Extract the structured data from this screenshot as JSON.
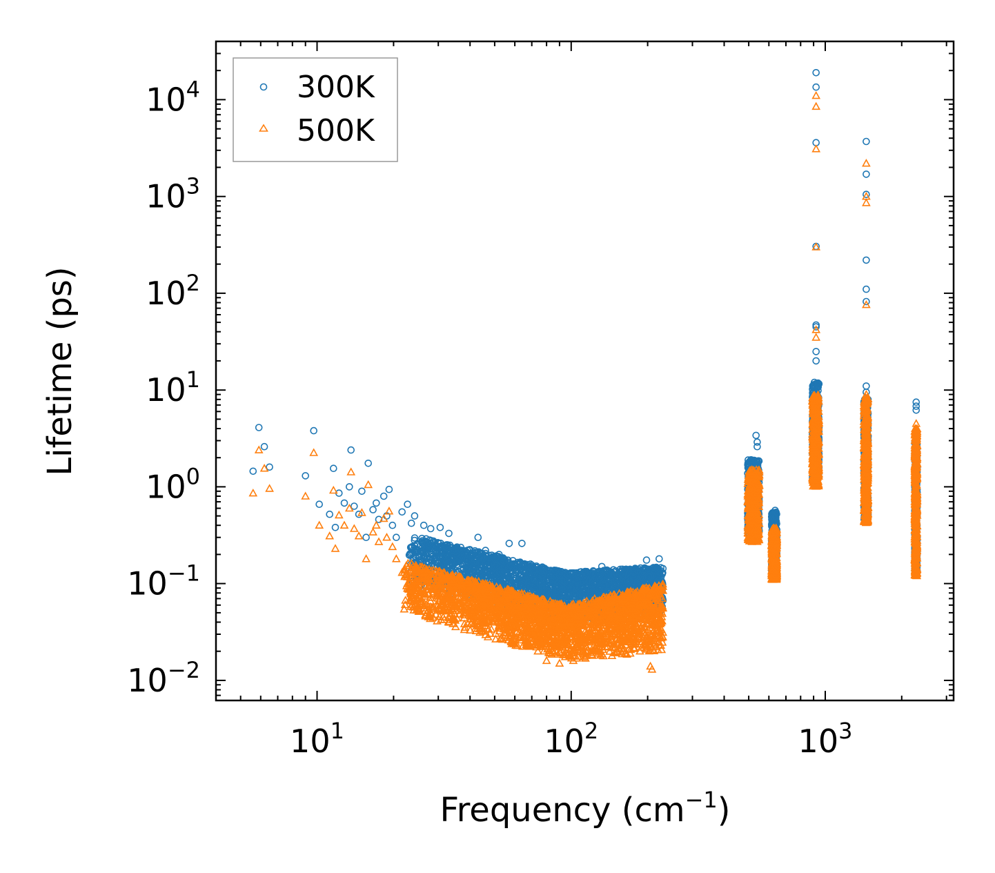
{
  "chart_data": {
    "type": "scatter",
    "title": "",
    "xlabel": "Frequency (cm",
    "xlabel_sup": "−1",
    "xlabel_end": ")",
    "ylabel": "Lifetime (ps)",
    "xscale": "log",
    "yscale": "log",
    "xlim": [
      4.0,
      3200
    ],
    "ylim": [
      0.0062,
      40000
    ],
    "x_ticks": [
      {
        "value": 10,
        "base": "10",
        "exp": "1"
      },
      {
        "value": 100,
        "base": "10",
        "exp": "2"
      },
      {
        "value": 1000,
        "base": "10",
        "exp": "3"
      }
    ],
    "y_ticks": [
      {
        "value": 0.01,
        "base": "10",
        "exp": "−2"
      },
      {
        "value": 0.1,
        "base": "10",
        "exp": "−1"
      },
      {
        "value": 1,
        "base": "10",
        "exp": "0"
      },
      {
        "value": 10,
        "base": "10",
        "exp": "1"
      },
      {
        "value": 100,
        "base": "10",
        "exp": "2"
      },
      {
        "value": 1000,
        "base": "10",
        "exp": "3"
      },
      {
        "value": 10000,
        "base": "10",
        "exp": "4"
      }
    ],
    "legend": {
      "position": "top-left"
    },
    "series": [
      {
        "name": "300K",
        "marker": "circle",
        "color": "#1f77b4",
        "points": [
          [
            5.6,
            1.45
          ],
          [
            5.9,
            4.1
          ],
          [
            6.2,
            2.6
          ],
          [
            6.5,
            1.6
          ],
          [
            9.0,
            1.3
          ],
          [
            9.7,
            3.8
          ],
          [
            10.2,
            0.66
          ],
          [
            11.2,
            0.52
          ],
          [
            11.6,
            1.55
          ],
          [
            11.8,
            0.38
          ],
          [
            12.2,
            0.86
          ],
          [
            12.8,
            0.68
          ],
          [
            13.4,
            1.0
          ],
          [
            13.6,
            2.4
          ],
          [
            14.0,
            0.63
          ],
          [
            14.6,
            0.52
          ],
          [
            15.0,
            0.9
          ],
          [
            15.6,
            0.3
          ],
          [
            15.9,
            1.75
          ],
          [
            16.6,
            0.58
          ],
          [
            17.1,
            0.68
          ],
          [
            17.5,
            0.46
          ],
          [
            18.3,
            0.8
          ],
          [
            18.8,
            0.5
          ],
          [
            19.2,
            0.94
          ],
          [
            19.8,
            0.4
          ],
          [
            20.5,
            0.3
          ],
          [
            21.6,
            0.55
          ],
          [
            22.7,
            0.66
          ],
          [
            23.5,
            0.42
          ],
          [
            24.2,
            0.5
          ],
          [
            26.3,
            0.4
          ],
          [
            28.0,
            0.37
          ],
          [
            30.5,
            0.38
          ],
          [
            33.0,
            0.33
          ],
          [
            37.0,
            0.22
          ],
          [
            43.0,
            0.3
          ],
          [
            46.0,
            0.22
          ],
          [
            52.0,
            0.2
          ],
          [
            57.0,
            0.26
          ],
          [
            64.0,
            0.26
          ],
          [
            72.0,
            0.14
          ],
          [
            83.0,
            0.12
          ],
          [
            97.0,
            0.11
          ],
          [
            132.0,
            0.15
          ],
          [
            157.0,
            0.13
          ],
          [
            198.0,
            0.175
          ],
          [
            222.0,
            0.18
          ],
          [
            510,
            1.9
          ],
          [
            534,
            3.4
          ],
          [
            540,
            2.9
          ],
          [
            540,
            2.6
          ],
          [
            635,
            0.57
          ],
          [
            920,
            47
          ],
          [
            920,
            45
          ],
          [
            920,
            305
          ],
          [
            920,
            3600
          ],
          [
            920,
            13500
          ],
          [
            920,
            19000
          ],
          [
            920,
            25
          ],
          [
            920,
            20
          ],
          [
            1450,
            3700
          ],
          [
            1450,
            1700
          ],
          [
            1450,
            1050
          ],
          [
            1450,
            220
          ],
          [
            1450,
            110
          ],
          [
            1450,
            82
          ],
          [
            1450,
            11
          ],
          [
            1450,
            9.5
          ],
          [
            2280,
            7.5
          ],
          [
            2280,
            6.8
          ],
          [
            2280,
            6.2
          ],
          [
            2280,
            3.2
          ],
          [
            2280,
            2.6
          ]
        ],
        "clusters": [
          {
            "x_range": [
              23,
              230
            ],
            "y_range_at_start": [
              0.1,
              0.32
            ],
            "y_range_at_min": [
              0.04,
              0.13
            ],
            "x_at_min": 95,
            "y_range_at_end": [
              0.05,
              0.15
            ]
          },
          {
            "x_range": [
              495,
              550
            ],
            "y_range": [
              0.33,
              1.9
            ]
          },
          {
            "x_range": [
              615,
              645
            ],
            "y_range": [
              0.12,
              0.55
            ]
          },
          {
            "x_range": [
              890,
              945
            ],
            "y_range": [
              1.2,
              12
            ]
          },
          {
            "x_range": [
              1420,
              1475
            ],
            "y_range": [
              0.45,
              8
            ]
          },
          {
            "x_range": [
              2250,
              2300
            ],
            "y_range": [
              0.13,
              3.0
            ]
          }
        ]
      },
      {
        "name": "500K",
        "marker": "triangle",
        "color": "#ff7f0e",
        "points": [
          [
            5.6,
            0.86
          ],
          [
            5.9,
            2.4
          ],
          [
            6.2,
            1.55
          ],
          [
            6.5,
            0.96
          ],
          [
            9.0,
            0.8
          ],
          [
            9.7,
            2.25
          ],
          [
            10.2,
            0.4
          ],
          [
            11.2,
            0.31
          ],
          [
            11.6,
            0.92
          ],
          [
            11.8,
            0.23
          ],
          [
            12.2,
            0.51
          ],
          [
            12.8,
            0.4
          ],
          [
            13.4,
            0.6
          ],
          [
            13.6,
            1.42
          ],
          [
            14.0,
            0.37
          ],
          [
            14.6,
            0.31
          ],
          [
            15.0,
            0.54
          ],
          [
            15.6,
            0.18
          ],
          [
            15.9,
            1.05
          ],
          [
            16.6,
            0.34
          ],
          [
            17.1,
            0.4
          ],
          [
            17.5,
            0.27
          ],
          [
            18.3,
            0.47
          ],
          [
            18.8,
            0.3
          ],
          [
            19.2,
            0.56
          ],
          [
            19.8,
            0.24
          ],
          [
            20.5,
            0.18
          ],
          [
            21.6,
            0.13
          ],
          [
            22.7,
            0.1
          ],
          [
            23.5,
            0.09
          ],
          [
            25.0,
            0.06
          ],
          [
            27.0,
            0.05
          ],
          [
            72.0,
            0.023
          ],
          [
            80.0,
            0.016
          ],
          [
            90.0,
            0.015
          ],
          [
            102.0,
            0.016
          ],
          [
            205.0,
            0.014
          ],
          [
            208.0,
            0.013
          ],
          [
            920,
            3100
          ],
          [
            920,
            8500
          ],
          [
            920,
            11000
          ],
          [
            920,
            300
          ],
          [
            920,
            35
          ],
          [
            920,
            42
          ],
          [
            1450,
            2200
          ],
          [
            1450,
            1000
          ],
          [
            1450,
            860
          ],
          [
            1450,
            76
          ],
          [
            1450,
            9.0
          ],
          [
            2280,
            4.5
          ]
        ],
        "clusters": [
          {
            "x_range": [
              22,
              230
            ],
            "y_range_at_start": [
              0.05,
              0.17
            ],
            "y_range_at_min": [
              0.016,
              0.06
            ],
            "x_at_min": 95,
            "y_range_at_end": [
              0.02,
              0.1
            ]
          },
          {
            "x_range": [
              495,
              550
            ],
            "y_range": [
              0.27,
              1.5
            ]
          },
          {
            "x_range": [
              615,
              645
            ],
            "y_range": [
              0.11,
              0.38
            ]
          },
          {
            "x_range": [
              890,
              945
            ],
            "y_range": [
              1.0,
              9.0
            ]
          },
          {
            "x_range": [
              1420,
              1475
            ],
            "y_range": [
              0.42,
              8.5
            ]
          },
          {
            "x_range": [
              2250,
              2300
            ],
            "y_range": [
              0.12,
              4.0
            ]
          }
        ]
      }
    ]
  }
}
